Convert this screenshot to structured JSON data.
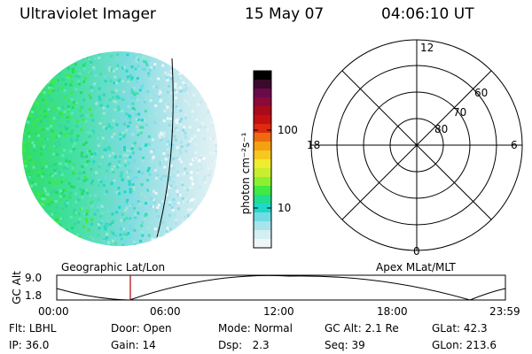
{
  "header": {
    "instrument": "Ultraviolet Imager",
    "date": "15 May 07",
    "time": "04:06:10 UT"
  },
  "colorbar": {
    "label": "photon cm⁻²s⁻¹",
    "ticks": [
      "100",
      "10"
    ],
    "colors": [
      "#000000",
      "#3a0a2a",
      "#6a0a4a",
      "#8a0a3a",
      "#aa0a1a",
      "#c41010",
      "#dd2a10",
      "#ee6a10",
      "#f4a010",
      "#f6c820",
      "#f0ec30",
      "#c8ee30",
      "#8cf030",
      "#40ea40",
      "#20dd90",
      "#20d8c8",
      "#70dce4",
      "#a8e4ec",
      "#d4eef2",
      "#eef6f8"
    ]
  },
  "polar_grid": {
    "mlt_labels": {
      "top": "12",
      "left": "18",
      "right": "6",
      "bottom": "0"
    },
    "lat_labels": [
      "60",
      "70",
      "80"
    ]
  },
  "timeline": {
    "left_label": "Geographic Lat/Lon",
    "right_label": "Apex MLat/MLT",
    "y_axis_title": "GC Alt",
    "y_ticks": [
      "9.0",
      "1.8"
    ],
    "x_ticks": [
      "00:00",
      "06:00",
      "12:00",
      "18:00",
      "23:59"
    ],
    "marker_color": "#b00000"
  },
  "status": {
    "row1": [
      {
        "key": "Flt:",
        "value": "LBHL"
      },
      {
        "key": "Door:",
        "value": "Open"
      },
      {
        "key": "Mode:",
        "value": "Normal"
      },
      {
        "key": "GC Alt:",
        "value": "2.1 Re"
      },
      {
        "key": "GLat:",
        "value": "42.3"
      }
    ],
    "row2": [
      {
        "key": "IP:",
        "value": "36.0"
      },
      {
        "key": "Gain:",
        "value": "14"
      },
      {
        "key": "Dsp:",
        "value": "2.3"
      },
      {
        "key": "Seq:",
        "value": "39"
      },
      {
        "key": "GLon:",
        "value": "213.6"
      }
    ]
  }
}
